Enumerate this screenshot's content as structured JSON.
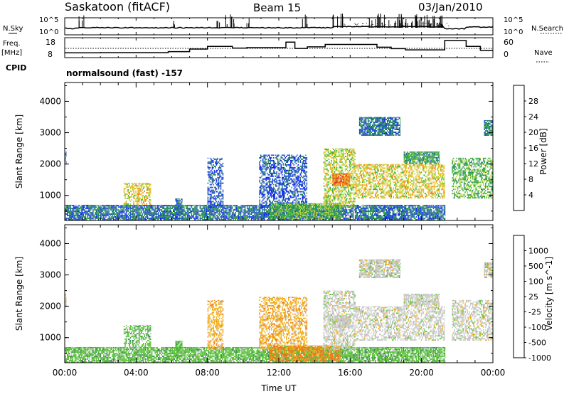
{
  "header": {
    "station": "Saskatoon (fitACF)",
    "beam": "Beam 15",
    "date": "03/Jan/2010"
  },
  "top_panels": {
    "nsky_label": "N.Sky",
    "nsky_ticks": [
      "10^5",
      "10^0"
    ],
    "nsearch_label": "N.Search",
    "nsearch_ticks": [
      "10^5",
      "10^0"
    ],
    "freq_label": "Freq.",
    "freq_unit": "[MHz]",
    "freq_ticks": [
      "18",
      "8"
    ],
    "nave_label": "Nave",
    "nave_ticks": [
      "60",
      "0"
    ],
    "cpid_label": "CPID",
    "cpid_text": "normalsound (fast) -157",
    "frequency_steps": [
      {
        "t": 0.0,
        "mhz": 10.4
      },
      {
        "t": 2.0,
        "mhz": 10.5
      },
      {
        "t": 5.8,
        "mhz": 11.0
      },
      {
        "t": 7.0,
        "mhz": 12.3
      },
      {
        "t": 8.0,
        "mhz": 13.6
      },
      {
        "t": 9.4,
        "mhz": 12.8
      },
      {
        "t": 10.2,
        "mhz": 13.0
      },
      {
        "t": 12.4,
        "mhz": 15.8
      },
      {
        "t": 12.9,
        "mhz": 12.6
      },
      {
        "t": 13.6,
        "mhz": 13.4
      },
      {
        "t": 14.6,
        "mhz": 14.6
      },
      {
        "t": 17.5,
        "mhz": 13.2
      },
      {
        "t": 18.3,
        "mhz": 12.5
      },
      {
        "t": 19.1,
        "mhz": 11.9
      },
      {
        "t": 21.3,
        "mhz": 16.6
      },
      {
        "t": 21.6,
        "mhz": 16.6
      },
      {
        "t": 22.5,
        "mhz": 13.6
      },
      {
        "t": 23.3,
        "mhz": 11.6
      },
      {
        "t": 24.0,
        "mhz": 11.6
      }
    ]
  },
  "x_axis": {
    "label": "Time UT",
    "ticks": [
      "00:00",
      "04:00",
      "08:00",
      "12:00",
      "16:00",
      "20:00",
      "00:00"
    ],
    "tick_hours": [
      0,
      4,
      8,
      12,
      16,
      20,
      24
    ]
  },
  "power_panel": {
    "ylabel": "Slant Range [km]",
    "yticks": [
      1000,
      2000,
      3000,
      4000
    ],
    "colorbar_label": "Power [dB]",
    "colorbar_ticks": [
      "28",
      "24",
      "20",
      "16",
      "12",
      "8",
      "4"
    ],
    "colors": [
      "#0a1eff",
      "#2052c8",
      "#2f8a64",
      "#3ab23a",
      "#b9d43a",
      "#f2b01a",
      "#f07a1a",
      "#e4281a"
    ]
  },
  "velocity_panel": {
    "ylabel": "Slant Range [km]",
    "yticks": [
      1000,
      2000,
      3000,
      4000
    ],
    "colorbar_label": "Velocity [m s^-1]",
    "colorbar_ticks": [
      "1000",
      "500",
      "100",
      "25",
      "-25",
      "-100",
      "-500",
      "-1000"
    ],
    "colors": [
      "#1434c8",
      "#2c62b8",
      "#3a8a50",
      "#5cc43a",
      "#c8c8c8",
      "#f2b01a",
      "#f07a1a",
      "#e4281a"
    ]
  },
  "chart_data": {
    "type": "heatmap",
    "title": "Saskatoon (fitACF)  Beam 15  03/Jan/2010",
    "xlabel": "Time UT",
    "ylabel": "Slant Range [km]",
    "xlim": [
      0,
      24
    ],
    "ylim": [
      200,
      4600
    ],
    "x_ticks": [
      "00:00",
      "04:00",
      "08:00",
      "12:00",
      "16:00",
      "20:00",
      "00:00"
    ],
    "y_ticks": [
      1000,
      2000,
      3000,
      4000
    ],
    "colorbars": [
      {
        "label": "Power [dB]",
        "ticks": [
          28,
          24,
          20,
          16,
          12,
          8,
          4
        ]
      },
      {
        "label": "Velocity [m s^-1]",
        "ticks": [
          1000,
          500,
          100,
          25,
          -25,
          -100,
          -500,
          -1000
        ]
      }
    ],
    "echo_regions": [
      {
        "t0": 0.0,
        "t1": 21.3,
        "r0": 200,
        "r1": 700,
        "power": 8,
        "velocity": 100
      },
      {
        "t0": 0.0,
        "t1": 0.1,
        "r0": 2000,
        "r1": 2400,
        "power": 6,
        "velocity": 25
      },
      {
        "t0": 3.3,
        "t1": 4.8,
        "r0": 700,
        "r1": 1400,
        "power": 20,
        "velocity": 100
      },
      {
        "t0": 6.2,
        "t1": 6.6,
        "r0": 400,
        "r1": 900,
        "power": 8,
        "velocity": 100
      },
      {
        "t0": 8.0,
        "t1": 8.9,
        "r0": 600,
        "r1": 2200,
        "power": 6,
        "velocity": -100
      },
      {
        "t0": 10.9,
        "t1": 13.6,
        "r0": 600,
        "r1": 2300,
        "power": 6,
        "velocity": -100
      },
      {
        "t0": 11.5,
        "t1": 15.5,
        "r0": 250,
        "r1": 750,
        "power": 14,
        "velocity": -500
      },
      {
        "t0": 14.5,
        "t1": 16.3,
        "r0": 600,
        "r1": 2500,
        "power": 18,
        "velocity": 25
      },
      {
        "t0": 15.0,
        "t1": 16.0,
        "r0": 1300,
        "r1": 1700,
        "power": 26,
        "velocity": -25
      },
      {
        "t0": 16.3,
        "t1": 21.3,
        "r0": 900,
        "r1": 2000,
        "power": 20,
        "velocity": -25
      },
      {
        "t0": 16.5,
        "t1": 18.8,
        "r0": 2900,
        "r1": 3500,
        "power": 8,
        "velocity": 25
      },
      {
        "t0": 19.0,
        "t1": 21.0,
        "r0": 2000,
        "r1": 2400,
        "power": 12,
        "velocity": 25
      },
      {
        "t0": 21.7,
        "t1": 24.0,
        "r0": 900,
        "r1": 2200,
        "power": 14,
        "velocity": 25
      },
      {
        "t0": 23.5,
        "t1": 24.0,
        "r0": 2900,
        "r1": 3400,
        "power": 10,
        "velocity": 25
      }
    ]
  }
}
